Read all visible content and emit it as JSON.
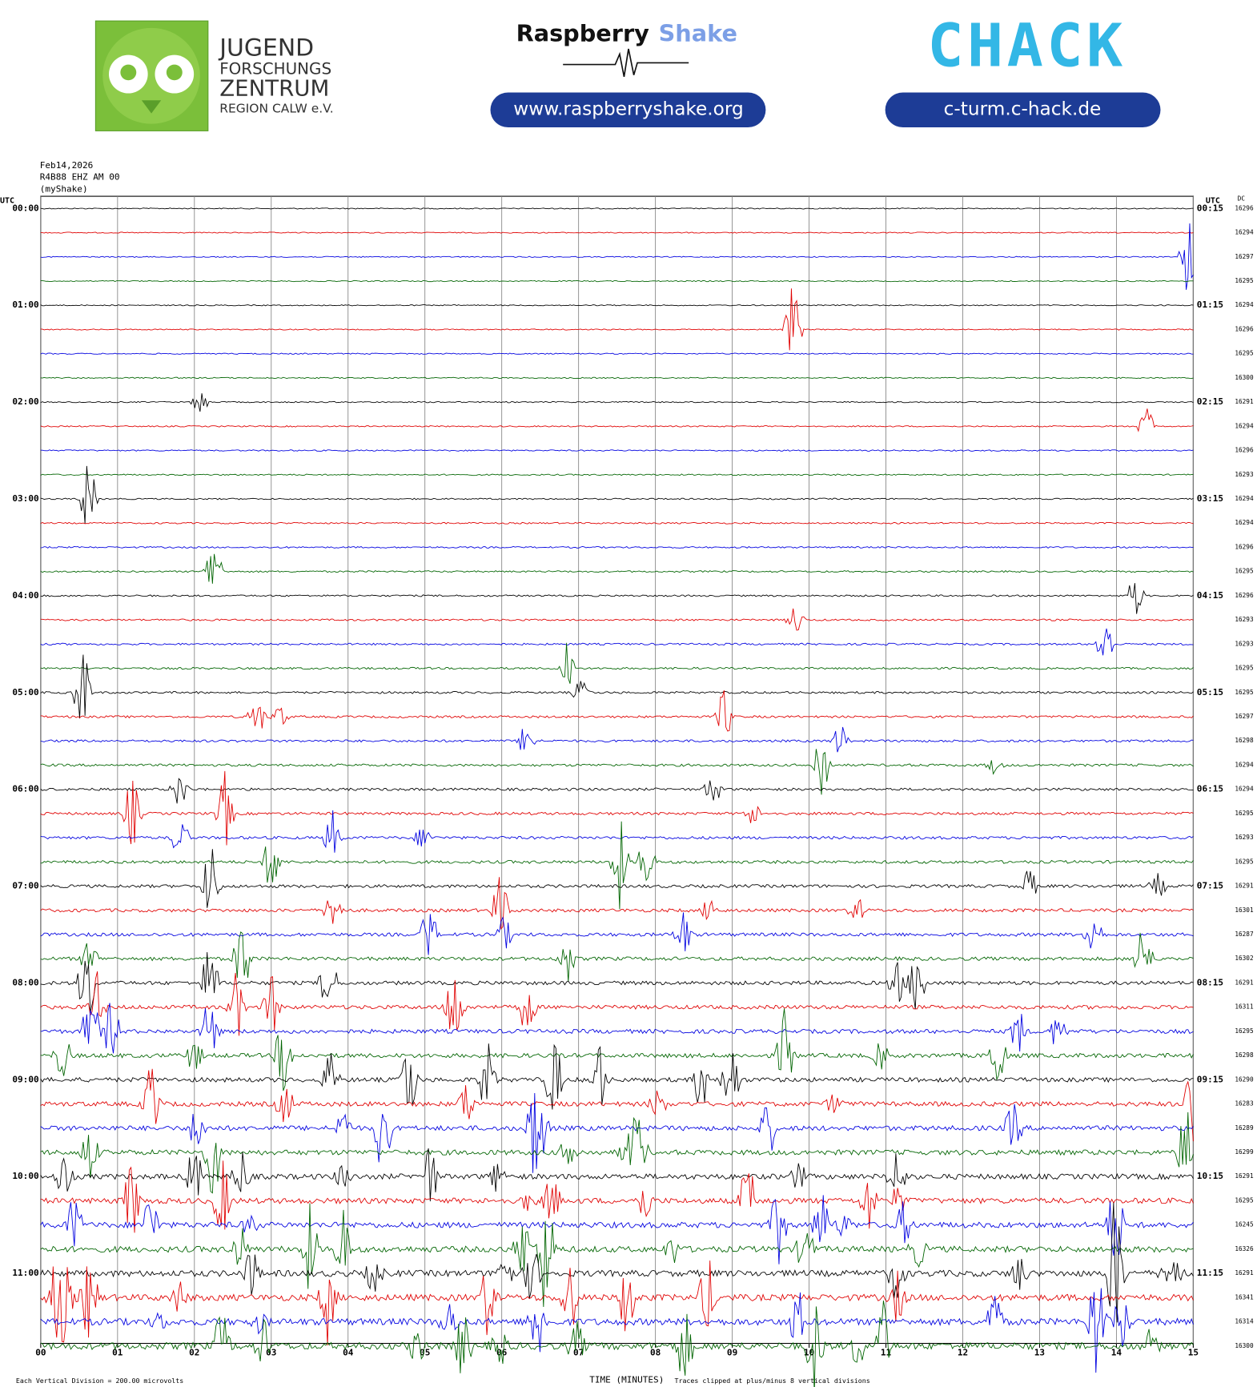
{
  "header": {
    "jfz": [
      "JUGEND",
      "FORSCHUNGS",
      "ZENTRUM",
      "REGION CALW e.V."
    ],
    "rs_name": "Raspberry",
    "rs_shake": "Shake",
    "rs_url": "www.raspberryshake.org",
    "chack": "CHACK",
    "chack_url": "c-turm.c-hack.de"
  },
  "chart_data": {
    "type": "helicorder",
    "info": [
      "Feb14,2026",
      "R4B88 EHZ AM 00",
      "(myShake)"
    ],
    "left_axis_title": "UTC",
    "right_axis_title": "UTC",
    "dc_title": "DC",
    "left_labels": [
      "00:00",
      "01:00",
      "02:00",
      "03:00",
      "04:00",
      "05:00",
      "06:00",
      "07:00",
      "08:00",
      "09:00",
      "10:00",
      "11:00"
    ],
    "right_labels": [
      "00:15",
      "01:15",
      "02:15",
      "03:15",
      "04:15",
      "05:15",
      "06:15",
      "07:15",
      "08:15",
      "09:15",
      "10:15",
      "11:15"
    ],
    "dc": [
      16296,
      16294,
      16297,
      16295,
      16294,
      16296,
      16295,
      16300,
      16291,
      16294,
      16296,
      16293,
      16294,
      16294,
      16296,
      16295,
      16296,
      16293,
      16293,
      16295,
      16295,
      16297,
      16298,
      16294,
      16294,
      16295,
      16293,
      16295,
      16291,
      16301,
      16287,
      16302,
      16291,
      16311,
      16295,
      16298,
      16290,
      16283,
      16289,
      16299,
      16291,
      16295,
      16245,
      16326,
      16291,
      16341,
      16314,
      16300
    ],
    "trace_colors": [
      "#000000",
      "#e00000",
      "#0000e0",
      "#006400"
    ],
    "xlim": [
      0,
      15
    ],
    "xticks": [
      {
        "value": 0,
        "label": "00"
      },
      {
        "value": 1,
        "label": "01"
      },
      {
        "value": 2,
        "label": "02"
      },
      {
        "value": 3,
        "label": "03"
      },
      {
        "value": 4,
        "label": "04"
      },
      {
        "value": 5,
        "label": "05"
      },
      {
        "value": 6,
        "label": "06"
      },
      {
        "value": 7,
        "label": "07"
      },
      {
        "value": 8,
        "label": "08"
      },
      {
        "value": 9,
        "label": "09"
      },
      {
        "value": 10,
        "label": "10"
      },
      {
        "value": 11,
        "label": "11"
      },
      {
        "value": 12,
        "label": "12"
      },
      {
        "value": 13,
        "label": "13"
      },
      {
        "value": 14,
        "label": "14"
      },
      {
        "value": 15,
        "label": "15"
      }
    ],
    "x_label": "TIME (MINUTES)",
    "footer_left": "Each Vertical Division =  200.00 microvolts",
    "footer_right": "Traces clipped at plus/minus 8 vertical divisions",
    "grid": true
  }
}
